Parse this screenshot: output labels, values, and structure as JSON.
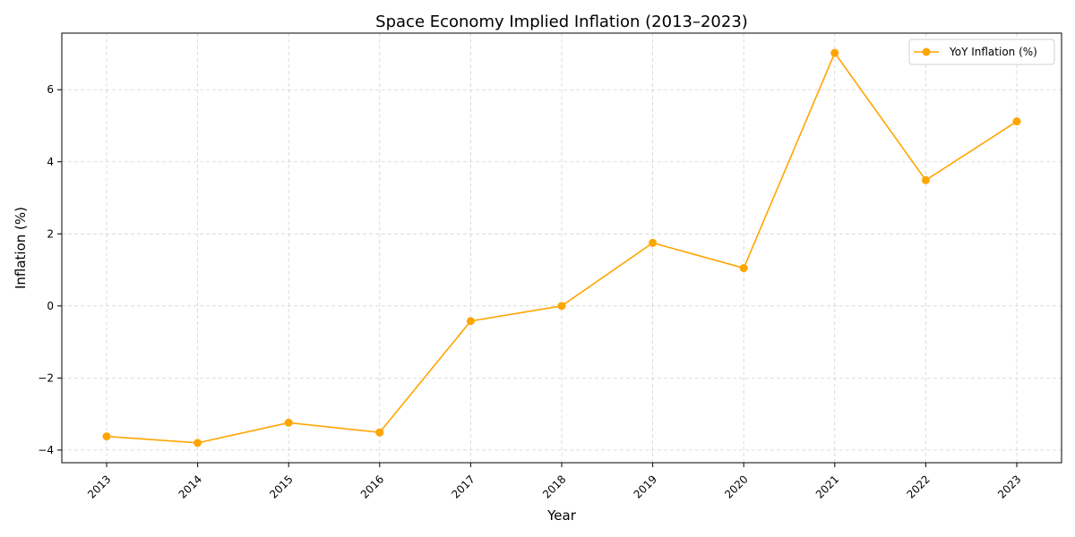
{
  "chart_data": {
    "type": "line",
    "title": "Space Economy Implied Inflation (2013–2023)",
    "xlabel": "Year",
    "ylabel": "Inflation (%)",
    "x": [
      "2013",
      "2014",
      "2015",
      "2016",
      "2017",
      "2018",
      "2019",
      "2020",
      "2021",
      "2022",
      "2023"
    ],
    "series": [
      {
        "name": "YoY Inflation (%)",
        "color": "#ffa500",
        "marker": "circle",
        "values": [
          -3.62,
          -3.8,
          -3.24,
          -3.51,
          -0.42,
          0.0,
          1.75,
          1.05,
          7.02,
          3.49,
          5.12
        ]
      }
    ],
    "ylim": [
      -4.35,
      7.57
    ],
    "yticks": [
      -4,
      -2,
      0,
      2,
      4,
      6
    ],
    "ytick_labels": [
      "−4",
      "−2",
      "0",
      "2",
      "4",
      "6"
    ],
    "grid": true,
    "legend_position": "top-right"
  }
}
